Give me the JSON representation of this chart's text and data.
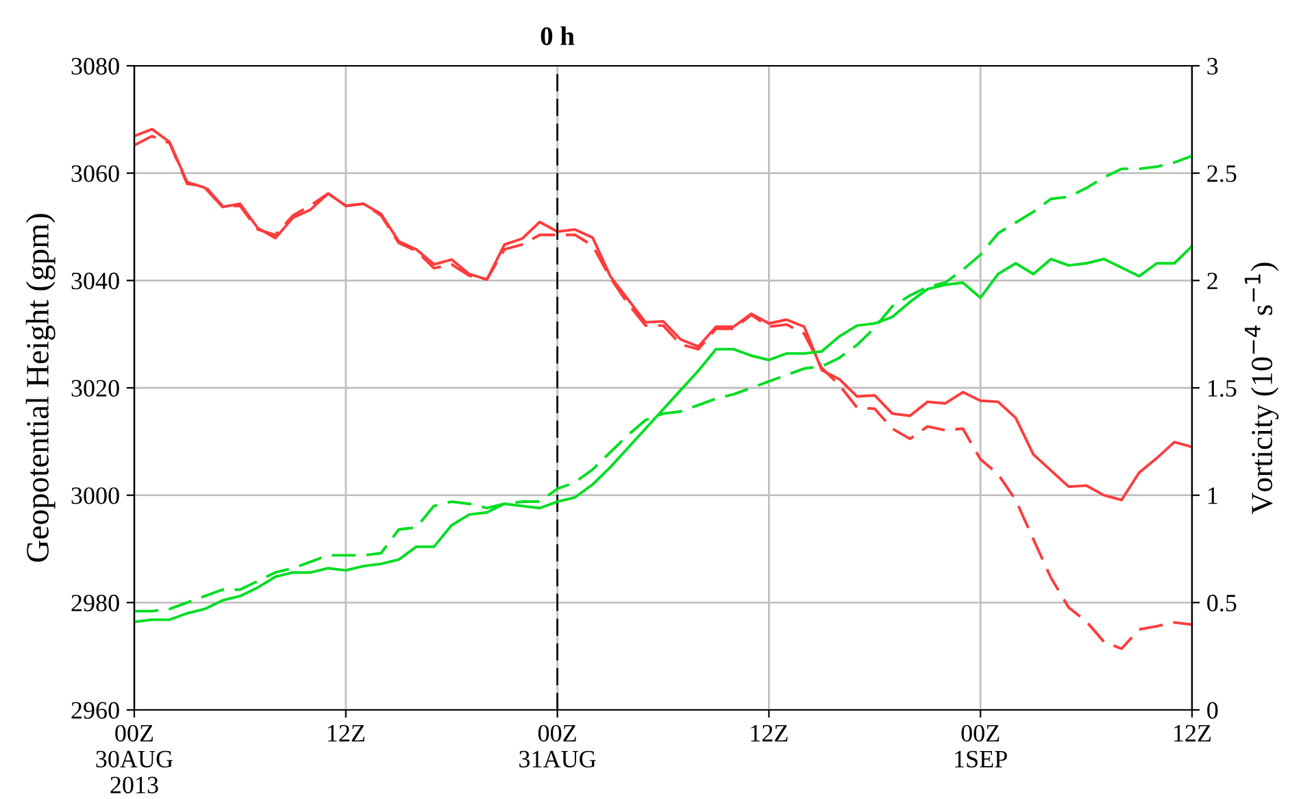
{
  "chart_data": {
    "type": "line",
    "ylabel": "Geopotential Height (gpm)",
    "y2label": "Vorticity (10$^{−4}$ s$^{−1}$)",
    "xlim": [
      "2013-08-30T00:00",
      "2013-09-01T12:00"
    ],
    "xticks": [
      {
        "value": "2013-08-30T00:00",
        "label": "00Z\n30AUG\n2013"
      },
      {
        "value": "2013-08-30T12:00",
        "label": "12Z"
      },
      {
        "value": "2013-08-31T00:00",
        "label": "00Z\n31AUG"
      },
      {
        "value": "2013-08-31T12:00",
        "label": "12Z"
      },
      {
        "value": "2013-09-01T00:00",
        "label": "00Z\n1SEP"
      },
      {
        "value": "2013-09-01T12:00",
        "label": "12Z"
      }
    ],
    "ylim": [
      2960,
      3080
    ],
    "yticks": [
      2960,
      2980,
      3000,
      3020,
      3040,
      3060,
      3080
    ],
    "y2lim": [
      0,
      3
    ],
    "y2ticks": [
      0,
      0.5,
      1,
      1.5,
      2,
      2.5,
      3
    ],
    "grid": true,
    "ref_lines": [
      {
        "axis": "x",
        "value": "2013-08-31T00:00",
        "label": "0 h",
        "color": "#000000",
        "line_style": "dashed"
      }
    ],
    "x": [
      "2013-08-30T00:00",
      "2013-08-30T01:00",
      "2013-08-30T02:00",
      "2013-08-30T03:00",
      "2013-08-30T04:00",
      "2013-08-30T05:00",
      "2013-08-30T06:00",
      "2013-08-30T07:00",
      "2013-08-30T08:00",
      "2013-08-30T09:00",
      "2013-08-30T10:00",
      "2013-08-30T11:00",
      "2013-08-30T12:00",
      "2013-08-30T13:00",
      "2013-08-30T14:00",
      "2013-08-30T15:00",
      "2013-08-30T16:00",
      "2013-08-30T17:00",
      "2013-08-30T18:00",
      "2013-08-30T19:00",
      "2013-08-30T20:00",
      "2013-08-30T21:00",
      "2013-08-30T22:00",
      "2013-08-30T23:00",
      "2013-08-31T00:00",
      "2013-08-31T01:00",
      "2013-08-31T02:00",
      "2013-08-31T03:00",
      "2013-08-31T04:00",
      "2013-08-31T05:00",
      "2013-08-31T06:00",
      "2013-08-31T07:00",
      "2013-08-31T08:00",
      "2013-08-31T09:00",
      "2013-08-31T10:00",
      "2013-08-31T11:00",
      "2013-08-31T12:00",
      "2013-08-31T13:00",
      "2013-08-31T14:00",
      "2013-08-31T15:00",
      "2013-08-31T16:00",
      "2013-08-31T17:00",
      "2013-08-31T18:00",
      "2013-08-31T19:00",
      "2013-08-31T20:00",
      "2013-08-31T21:00",
      "2013-08-31T22:00",
      "2013-08-31T23:00",
      "2013-09-01T00:00",
      "2013-09-01T01:00",
      "2013-09-01T02:00",
      "2013-09-01T03:00",
      "2013-09-01T04:00",
      "2013-09-01T05:00",
      "2013-09-01T06:00",
      "2013-09-01T07:00",
      "2013-09-01T08:00",
      "2013-09-01T09:00",
      "2013-09-01T10:00",
      "2013-09-01T11:00",
      "2013-09-01T12:00"
    ],
    "series": [
      {
        "color": "#ff3b3b",
        "line_style": "solid",
        "values": [
          3066.9,
          3068.2,
          3065.8,
          3058.3,
          3057.3,
          3053.7,
          3054.3,
          3049.8,
          3047.9,
          3051.7,
          3053.2,
          3056.2,
          3053.9,
          3054.3,
          3052.4,
          3047.3,
          3045.8,
          3043,
          3043.9,
          3041.2,
          3040.2,
          3046.7,
          3047.8,
          3050.9,
          3049.1,
          3049.5,
          3048,
          3040.8,
          3036.5,
          3032.2,
          3032.4,
          3029,
          3027.7,
          3031.4,
          3031.4,
          3033.8,
          3032,
          3032.7,
          3031.4,
          3023.3,
          3021.6,
          3018.4,
          3018.6,
          3015.2,
          3014.8,
          3017.4,
          3017.1,
          3019.2,
          3017.6,
          3017.4,
          3014.4,
          3007.6,
          3004.6,
          3001.6,
          3001.8,
          3000,
          2999.1,
          3004.2,
          3006.9,
          3009.9,
          3009.0
        ]
      },
      {
        "color": "#ff3b3b",
        "line_style": "dashed",
        "values": [
          3065.2,
          3066.9,
          3065.6,
          3058,
          3057.6,
          3053.9,
          3053.9,
          3049.5,
          3048.5,
          3052.1,
          3054,
          3056.2,
          3053.9,
          3054.3,
          3052.1,
          3047,
          3045.5,
          3042.3,
          3043,
          3040.9,
          3040.2,
          3045.8,
          3046.7,
          3048.5,
          3048.5,
          3048.5,
          3046.5,
          3040.5,
          3035.7,
          3031.6,
          3031.6,
          3028.1,
          3027.2,
          3031,
          3031,
          3033.6,
          3031.4,
          3031.8,
          3030.1,
          3023.7,
          3020.5,
          3016.3,
          3016.1,
          3012.4,
          3010.5,
          3012.8,
          3012.1,
          3012.4,
          3006.7,
          3003.9,
          2999.1,
          2991.8,
          2984.6,
          2979.1,
          2976.5,
          2972.7,
          2971.4,
          2975,
          2975.6,
          2976.3,
          2975.9
        ]
      },
      {
        "color": "#00dd22",
        "line_style": "solid",
        "axis": "y2",
        "values": [
          0.41,
          0.42,
          0.42,
          0.45,
          0.47,
          0.51,
          0.53,
          0.57,
          0.62,
          0.64,
          0.64,
          0.66,
          0.65,
          0.67,
          0.68,
          0.7,
          0.76,
          0.76,
          0.86,
          0.91,
          0.92,
          0.96,
          0.95,
          0.94,
          0.97,
          0.99,
          1.05,
          1.13,
          1.22,
          1.31,
          1.4,
          1.49,
          1.58,
          1.68,
          1.68,
          1.65,
          1.63,
          1.66,
          1.66,
          1.67,
          1.74,
          1.79,
          1.8,
          1.83,
          1.9,
          1.96,
          1.98,
          1.99,
          1.92,
          2.03,
          2.08,
          2.03,
          2.1,
          2.07,
          2.08,
          2.1,
          2.06,
          2.02,
          2.08,
          2.08,
          2.16
        ]
      },
      {
        "color": "#00dd22",
        "line_style": "dashed",
        "axis": "y2",
        "values": [
          0.46,
          0.46,
          0.47,
          0.5,
          0.53,
          0.56,
          0.56,
          0.6,
          0.64,
          0.66,
          0.69,
          0.72,
          0.72,
          0.72,
          0.73,
          0.84,
          0.85,
          0.95,
          0.97,
          0.96,
          0.94,
          0.96,
          0.97,
          0.97,
          1.03,
          1.06,
          1.12,
          1.2,
          1.28,
          1.35,
          1.38,
          1.39,
          1.42,
          1.45,
          1.47,
          1.5,
          1.53,
          1.56,
          1.59,
          1.6,
          1.64,
          1.7,
          1.78,
          1.88,
          1.93,
          1.97,
          1.99,
          2.05,
          2.12,
          2.22,
          2.27,
          2.32,
          2.38,
          2.39,
          2.43,
          2.48,
          2.52,
          2.52,
          2.53,
          2.55,
          2.58
        ]
      }
    ]
  }
}
